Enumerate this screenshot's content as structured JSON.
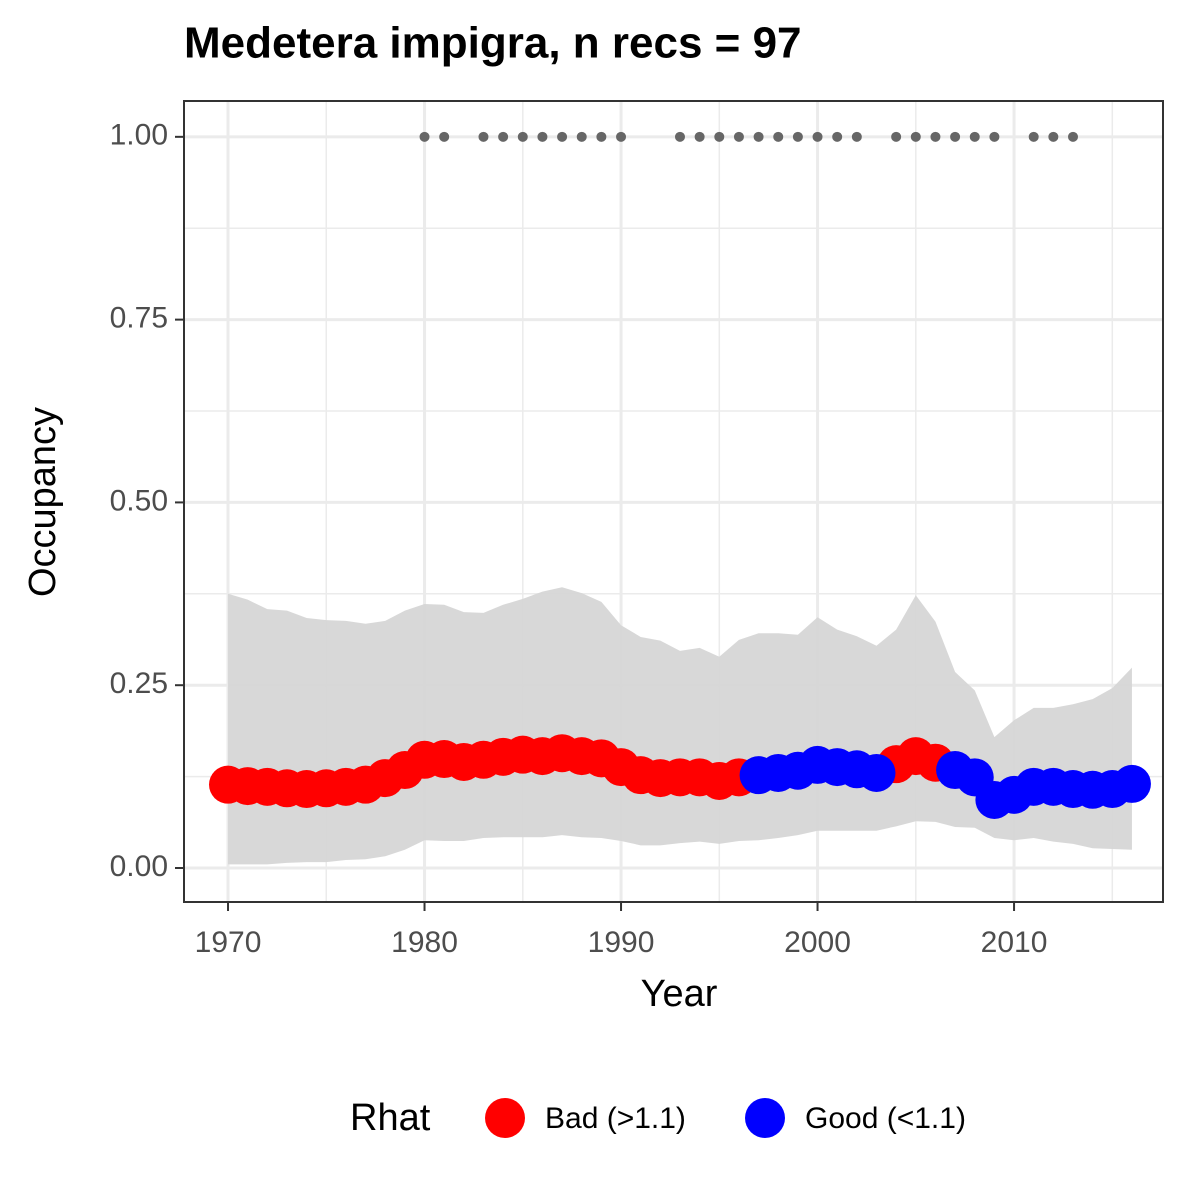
{
  "chart_data": {
    "type": "line",
    "title": "Medetera impigra, n recs = 97",
    "x_label": "Year",
    "y_label": "Occupancy",
    "legend_title": "Rhat",
    "x": [
      1970,
      1971,
      1972,
      1973,
      1974,
      1975,
      1976,
      1977,
      1978,
      1979,
      1980,
      1981,
      1982,
      1983,
      1984,
      1985,
      1986,
      1987,
      1988,
      1989,
      1990,
      1991,
      1992,
      1993,
      1994,
      1995,
      1996,
      1997,
      1998,
      1999,
      2000,
      2001,
      2002,
      2003,
      2004,
      2005,
      2006,
      2007,
      2008,
      2009,
      2010,
      2011,
      2012,
      2013,
      2014,
      2015,
      2016
    ],
    "series": [
      {
        "name": "Bad (>1.1)",
        "color": "#ff0000",
        "values": [
          0.114,
          0.112,
          0.111,
          0.109,
          0.108,
          0.109,
          0.111,
          0.114,
          0.123,
          0.134,
          0.148,
          0.149,
          0.145,
          0.148,
          0.152,
          0.155,
          0.153,
          0.157,
          0.153,
          0.15,
          0.138,
          0.127,
          0.123,
          0.124,
          0.124,
          0.119,
          0.124,
          null,
          null,
          null,
          null,
          null,
          null,
          null,
          0.142,
          0.153,
          0.144,
          null,
          null,
          null,
          null,
          null,
          null,
          null,
          null,
          null,
          null
        ]
      },
      {
        "name": "Good (<1.1)",
        "color": "#0000ff",
        "values": [
          null,
          null,
          null,
          null,
          null,
          null,
          null,
          null,
          null,
          null,
          null,
          null,
          null,
          null,
          null,
          null,
          null,
          null,
          null,
          null,
          null,
          null,
          null,
          null,
          null,
          null,
          null,
          0.127,
          0.13,
          0.133,
          0.141,
          0.138,
          0.135,
          0.13,
          null,
          null,
          null,
          0.134,
          0.124,
          0.093,
          0.1,
          0.111,
          0.111,
          0.108,
          0.107,
          0.108,
          0.115
        ]
      }
    ],
    "band": {
      "color": "#d6d6d6",
      "upper": [
        0.375,
        0.367,
        0.354,
        0.352,
        0.342,
        0.339,
        0.338,
        0.334,
        0.338,
        0.352,
        0.361,
        0.36,
        0.35,
        0.349,
        0.36,
        0.368,
        0.378,
        0.384,
        0.376,
        0.364,
        0.332,
        0.316,
        0.311,
        0.297,
        0.301,
        0.289,
        0.312,
        0.321,
        0.321,
        0.319,
        0.343,
        0.326,
        0.317,
        0.304,
        0.326,
        0.373,
        0.337,
        0.268,
        0.243,
        0.179,
        0.202,
        0.219,
        0.219,
        0.224,
        0.231,
        0.246,
        0.274
      ],
      "lower": [
        0.005,
        0.005,
        0.005,
        0.007,
        0.008,
        0.008,
        0.011,
        0.012,
        0.016,
        0.025,
        0.038,
        0.037,
        0.037,
        0.041,
        0.042,
        0.042,
        0.042,
        0.045,
        0.042,
        0.041,
        0.037,
        0.031,
        0.031,
        0.034,
        0.036,
        0.033,
        0.037,
        0.038,
        0.041,
        0.045,
        0.051,
        0.051,
        0.051,
        0.051,
        0.057,
        0.064,
        0.063,
        0.056,
        0.055,
        0.041,
        0.038,
        0.041,
        0.036,
        0.033,
        0.027,
        0.026,
        0.025
      ]
    },
    "records": {
      "color": "#666666",
      "x": [
        1980,
        1981,
        1983,
        1984,
        1985,
        1986,
        1987,
        1988,
        1989,
        1990,
        1993,
        1994,
        1995,
        1996,
        1997,
        1998,
        1999,
        2000,
        2001,
        2002,
        2004,
        2005,
        2006,
        2007,
        2008,
        2009,
        2011,
        2012,
        2013
      ],
      "values": [
        1,
        1,
        1,
        1,
        1,
        1,
        1,
        1,
        1,
        1,
        1,
        1,
        1,
        1,
        1,
        1,
        1,
        1,
        1,
        1,
        1,
        1,
        1,
        1,
        1,
        1,
        1,
        1,
        1
      ]
    },
    "xlim": [
      1967.76,
      2017.58
    ],
    "ylim": [
      -0.0465,
      1.049
    ],
    "xticks": [
      1970,
      1980,
      1990,
      2000,
      2010
    ],
    "yticks": [
      {
        "value": 0,
        "label": "0.00"
      },
      {
        "value": 0.25,
        "label": "0.25"
      },
      {
        "value": 0.5,
        "label": "0.50"
      },
      {
        "value": 0.75,
        "label": "0.75"
      },
      {
        "value": 1,
        "label": "1.00"
      }
    ],
    "x_minor_grid": [
      1975,
      1985,
      1995,
      2005,
      2015
    ],
    "y_minor_grid": [
      0.125,
      0.375,
      0.625,
      0.875
    ],
    "grid": true,
    "legend_position": "bottom"
  }
}
